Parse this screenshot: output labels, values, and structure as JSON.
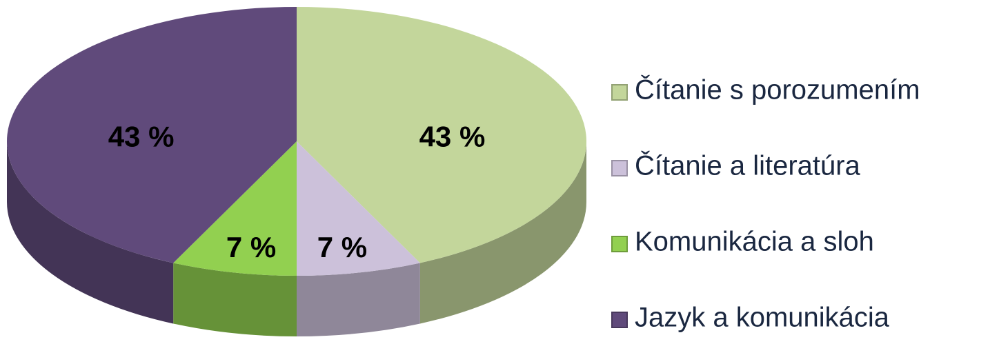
{
  "chart_data": {
    "type": "pie3d",
    "categories": [
      "Čítanie s porozumením",
      "Čítanie a literatúra",
      "Komunikácia a sloh",
      "Jazyk a komunikácia"
    ],
    "values": [
      43,
      7,
      7,
      43
    ],
    "value_labels": [
      "43 %",
      "7 %",
      "7 %",
      "43 %"
    ],
    "colors": [
      "#c3d69b",
      "#ccc1da",
      "#92d050",
      "#604a7b"
    ],
    "legend": "right"
  }
}
